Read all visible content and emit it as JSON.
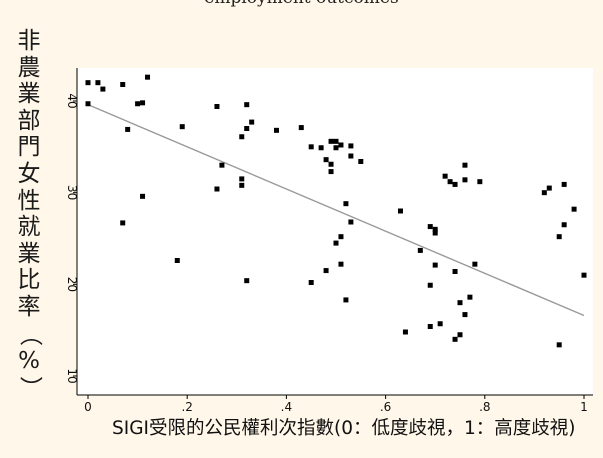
{
  "caption": "employment outcomes",
  "chart_data": {
    "type": "scatter",
    "title": "",
    "ylabel_chars": [
      "非",
      "農",
      "業",
      "部",
      "門",
      "女",
      "性",
      "就",
      "業",
      "比",
      "率",
      "（",
      "%",
      "）"
    ],
    "xlabel": "SIGI受限的公民權利次指數(0：低度歧視，1：高度歧視)",
    "xlim": [
      -0.01,
      1.01
    ],
    "ylim": [
      9.5,
      43.5
    ],
    "xticks": [
      0,
      0.2,
      0.4,
      0.6,
      0.8,
      1
    ],
    "xtick_labels": [
      "0",
      ".2",
      ".4",
      ".6",
      ".8",
      "1"
    ],
    "yticks": [
      10,
      20,
      30,
      40
    ],
    "ytick_labels": [
      "10",
      "20",
      "30",
      "40"
    ],
    "grid": false,
    "fit_line": {
      "x": [
        0,
        1
      ],
      "y": [
        39.6,
        16.6
      ]
    },
    "points": [
      {
        "x": 0.0,
        "y": 42.0
      },
      {
        "x": 0.02,
        "y": 42.0
      },
      {
        "x": 0.03,
        "y": 41.3
      },
      {
        "x": 0.0,
        "y": 39.7
      },
      {
        "x": 0.07,
        "y": 41.8
      },
      {
        "x": 0.1,
        "y": 39.7
      },
      {
        "x": 0.11,
        "y": 39.8
      },
      {
        "x": 0.12,
        "y": 42.6
      },
      {
        "x": 0.08,
        "y": 36.9
      },
      {
        "x": 0.11,
        "y": 29.6
      },
      {
        "x": 0.07,
        "y": 26.7
      },
      {
        "x": 0.18,
        "y": 22.6
      },
      {
        "x": 0.19,
        "y": 37.2
      },
      {
        "x": 0.26,
        "y": 39.4
      },
      {
        "x": 0.32,
        "y": 39.6
      },
      {
        "x": 0.32,
        "y": 37.0
      },
      {
        "x": 0.33,
        "y": 37.7
      },
      {
        "x": 0.31,
        "y": 36.1
      },
      {
        "x": 0.27,
        "y": 33.0
      },
      {
        "x": 0.26,
        "y": 30.4
      },
      {
        "x": 0.31,
        "y": 31.5
      },
      {
        "x": 0.31,
        "y": 30.8
      },
      {
        "x": 0.32,
        "y": 20.4
      },
      {
        "x": 0.38,
        "y": 36.8
      },
      {
        "x": 0.43,
        "y": 37.1
      },
      {
        "x": 0.45,
        "y": 35.0
      },
      {
        "x": 0.47,
        "y": 34.9
      },
      {
        "x": 0.49,
        "y": 35.6
      },
      {
        "x": 0.5,
        "y": 35.6
      },
      {
        "x": 0.5,
        "y": 34.9
      },
      {
        "x": 0.51,
        "y": 35.2
      },
      {
        "x": 0.48,
        "y": 33.6
      },
      {
        "x": 0.49,
        "y": 33.1
      },
      {
        "x": 0.49,
        "y": 32.3
      },
      {
        "x": 0.53,
        "y": 35.1
      },
      {
        "x": 0.53,
        "y": 34.0
      },
      {
        "x": 0.55,
        "y": 33.4
      },
      {
        "x": 0.52,
        "y": 28.8
      },
      {
        "x": 0.53,
        "y": 26.8
      },
      {
        "x": 0.51,
        "y": 25.2
      },
      {
        "x": 0.5,
        "y": 24.5
      },
      {
        "x": 0.51,
        "y": 22.2
      },
      {
        "x": 0.48,
        "y": 21.5
      },
      {
        "x": 0.45,
        "y": 20.2
      },
      {
        "x": 0.52,
        "y": 18.3
      },
      {
        "x": 0.63,
        "y": 28.0
      },
      {
        "x": 0.64,
        "y": 14.8
      },
      {
        "x": 0.67,
        "y": 23.7
      },
      {
        "x": 0.69,
        "y": 26.3
      },
      {
        "x": 0.7,
        "y": 26.0
      },
      {
        "x": 0.7,
        "y": 25.6
      },
      {
        "x": 0.69,
        "y": 19.9
      },
      {
        "x": 0.7,
        "y": 22.1
      },
      {
        "x": 0.69,
        "y": 15.4
      },
      {
        "x": 0.71,
        "y": 15.7
      },
      {
        "x": 0.72,
        "y": 31.8
      },
      {
        "x": 0.73,
        "y": 31.2
      },
      {
        "x": 0.74,
        "y": 30.9
      },
      {
        "x": 0.76,
        "y": 31.4
      },
      {
        "x": 0.76,
        "y": 33.0
      },
      {
        "x": 0.79,
        "y": 31.2
      },
      {
        "x": 0.74,
        "y": 21.4
      },
      {
        "x": 0.75,
        "y": 18.0
      },
      {
        "x": 0.77,
        "y": 18.6
      },
      {
        "x": 0.76,
        "y": 16.7
      },
      {
        "x": 0.75,
        "y": 14.5
      },
      {
        "x": 0.74,
        "y": 14.0
      },
      {
        "x": 0.78,
        "y": 22.2
      },
      {
        "x": 0.92,
        "y": 30.0
      },
      {
        "x": 0.93,
        "y": 30.5
      },
      {
        "x": 0.96,
        "y": 30.9
      },
      {
        "x": 0.98,
        "y": 28.2
      },
      {
        "x": 0.96,
        "y": 26.5
      },
      {
        "x": 0.95,
        "y": 25.2
      },
      {
        "x": 1.0,
        "y": 21.0
      },
      {
        "x": 0.95,
        "y": 13.4
      }
    ]
  }
}
